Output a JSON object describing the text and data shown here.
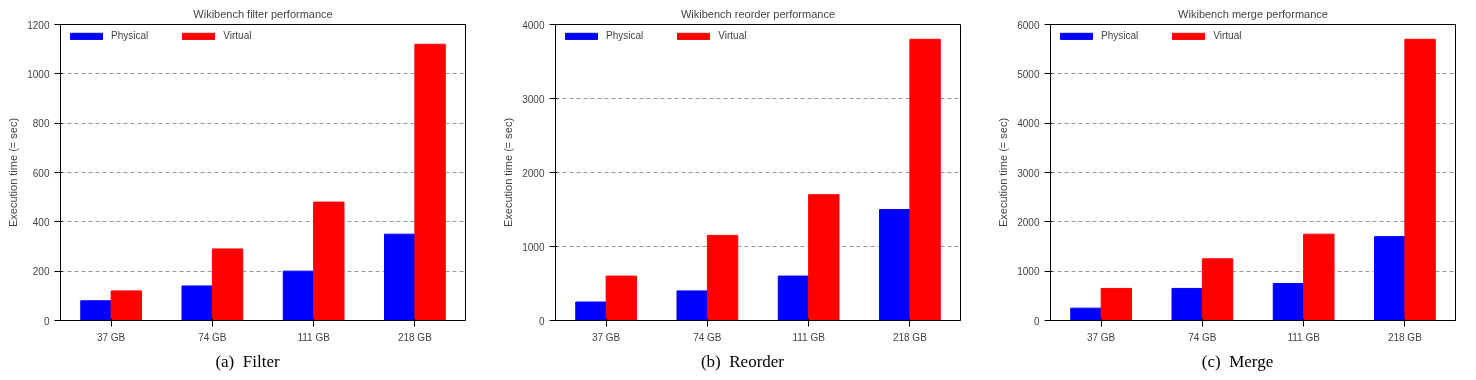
{
  "chart_data": [
    {
      "type": "bar",
      "title": "Wikibench filter performance",
      "ylabel": "Execution time (= sec)",
      "categories": [
        "37 GB",
        "74 GB",
        "111 GB",
        "218 GB"
      ],
      "series": [
        {
          "name": "Physical",
          "color": "#0000ff",
          "values": [
            80,
            140,
            200,
            350
          ]
        },
        {
          "name": "Virtual",
          "color": "#ff0000",
          "values": [
            120,
            290,
            480,
            1120
          ]
        }
      ],
      "ylim": [
        0,
        1200
      ],
      "yticks": [
        0,
        200,
        400,
        600,
        800,
        1000,
        1200
      ],
      "grid": "y",
      "legend": "top left",
      "annotations": [
        "(a)  Filter"
      ]
    },
    {
      "type": "bar",
      "title": "Wikibench reorder performance",
      "ylabel": "Execution time (= sec)",
      "categories": [
        "37 GB",
        "74 GB",
        "111 GB",
        "218 GB"
      ],
      "series": [
        {
          "name": "Physical",
          "color": "#0000ff",
          "values": [
            250,
            400,
            600,
            1500
          ]
        },
        {
          "name": "Virtual",
          "color": "#ff0000",
          "values": [
            600,
            1150,
            1700,
            3800
          ]
        }
      ],
      "ylim": [
        0,
        4000
      ],
      "yticks": [
        0,
        1000,
        2000,
        3000,
        4000
      ],
      "grid": "y",
      "legend": "top left",
      "annotations": [
        "(b)  Reorder"
      ]
    },
    {
      "type": "bar",
      "title": "Wikibench merge performance",
      "ylabel": "Execution time (= sec)",
      "categories": [
        "37 GB",
        "74 GB",
        "111 GB",
        "218 GB"
      ],
      "series": [
        {
          "name": "Physical",
          "color": "#0000ff",
          "values": [
            250,
            650,
            750,
            1700
          ]
        },
        {
          "name": "Virtual",
          "color": "#ff0000",
          "values": [
            650,
            1250,
            1750,
            5700
          ]
        }
      ],
      "ylim": [
        0,
        6000
      ],
      "yticks": [
        0,
        1000,
        2000,
        3000,
        4000,
        5000,
        6000
      ],
      "grid": "y",
      "legend": "top left",
      "annotations": [
        "(c)  Merge"
      ]
    }
  ]
}
